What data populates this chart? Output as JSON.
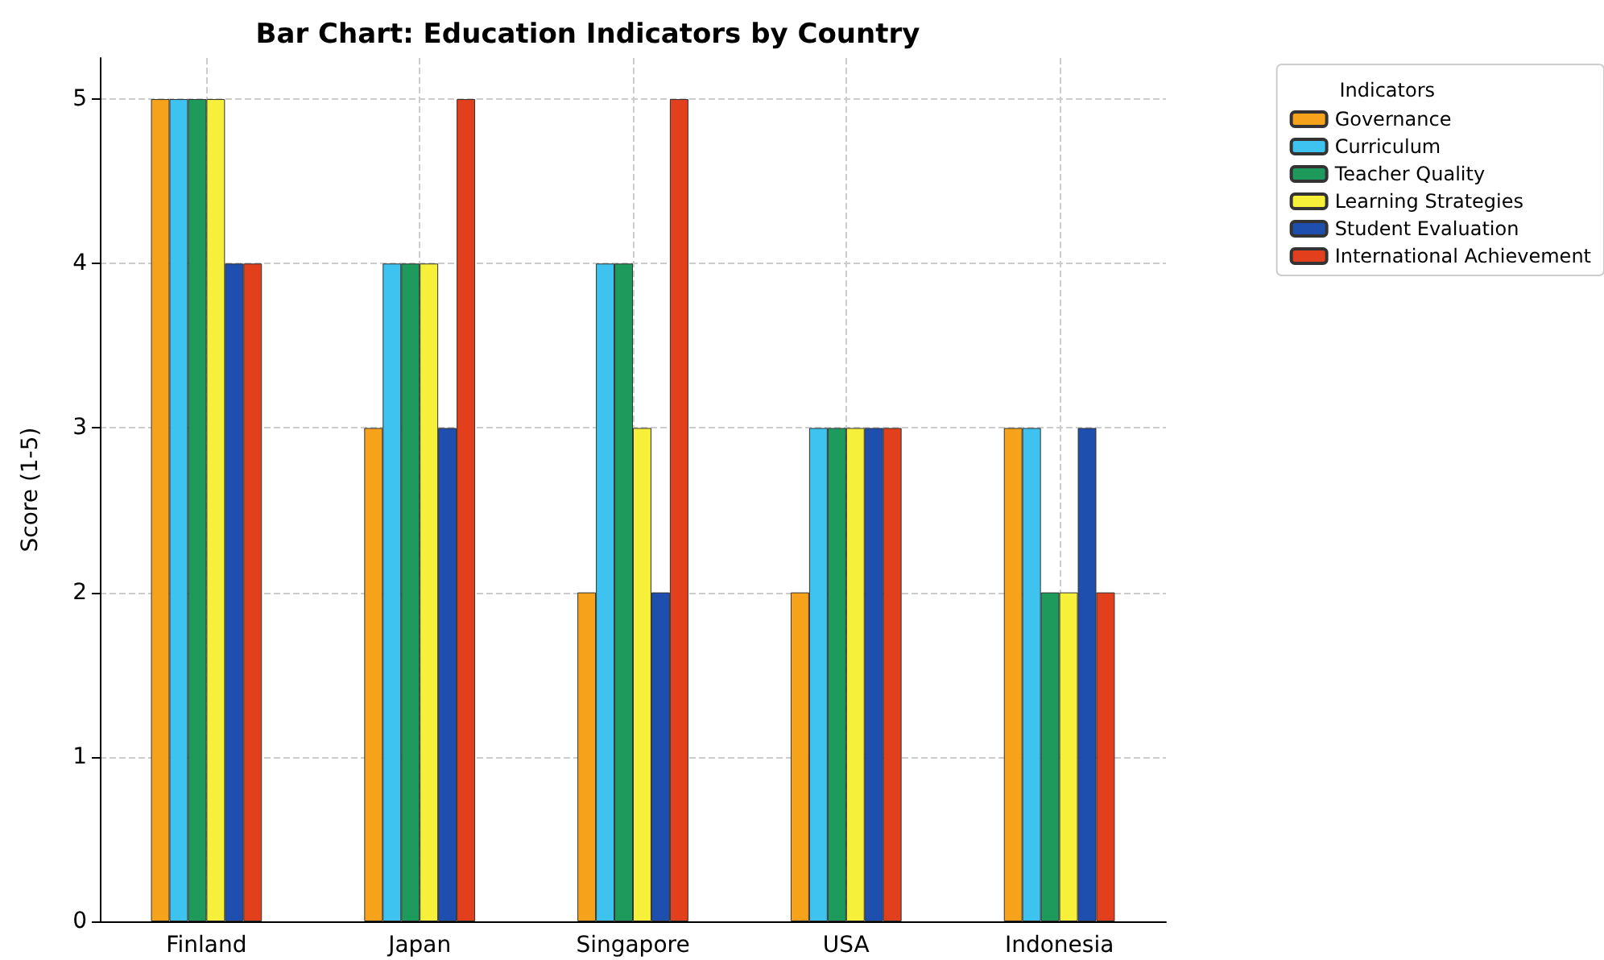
{
  "chart_data": {
    "type": "bar",
    "title": "Bar Chart: Education Indicators by Country",
    "ylabel": "Score (1-5)",
    "legend_title": "Indicators",
    "categories": [
      "Finland",
      "Japan",
      "Singapore",
      "USA",
      "Indonesia"
    ],
    "series": [
      {
        "name": "Governance",
        "color": "#f7a21b",
        "values": [
          5,
          3,
          2,
          2,
          3
        ]
      },
      {
        "name": "Curriculum",
        "color": "#3ec3f0",
        "values": [
          5,
          4,
          4,
          3,
          3
        ]
      },
      {
        "name": "Teacher Quality",
        "color": "#1e9b5c",
        "values": [
          5,
          4,
          4,
          3,
          2
        ]
      },
      {
        "name": "Learning Strategies",
        "color": "#f6f03a",
        "values": [
          5,
          4,
          3,
          3,
          2
        ]
      },
      {
        "name": "Student Evaluation",
        "color": "#1f4fae",
        "values": [
          4,
          3,
          2,
          3,
          3
        ]
      },
      {
        "name": "International Achievement",
        "color": "#e2401c",
        "values": [
          4,
          5,
          5,
          3,
          2
        ]
      }
    ],
    "ylim": [
      0,
      5.25
    ],
    "yticks": [
      0,
      1,
      2,
      3,
      4,
      5
    ],
    "grid": true,
    "legend": "top right"
  }
}
